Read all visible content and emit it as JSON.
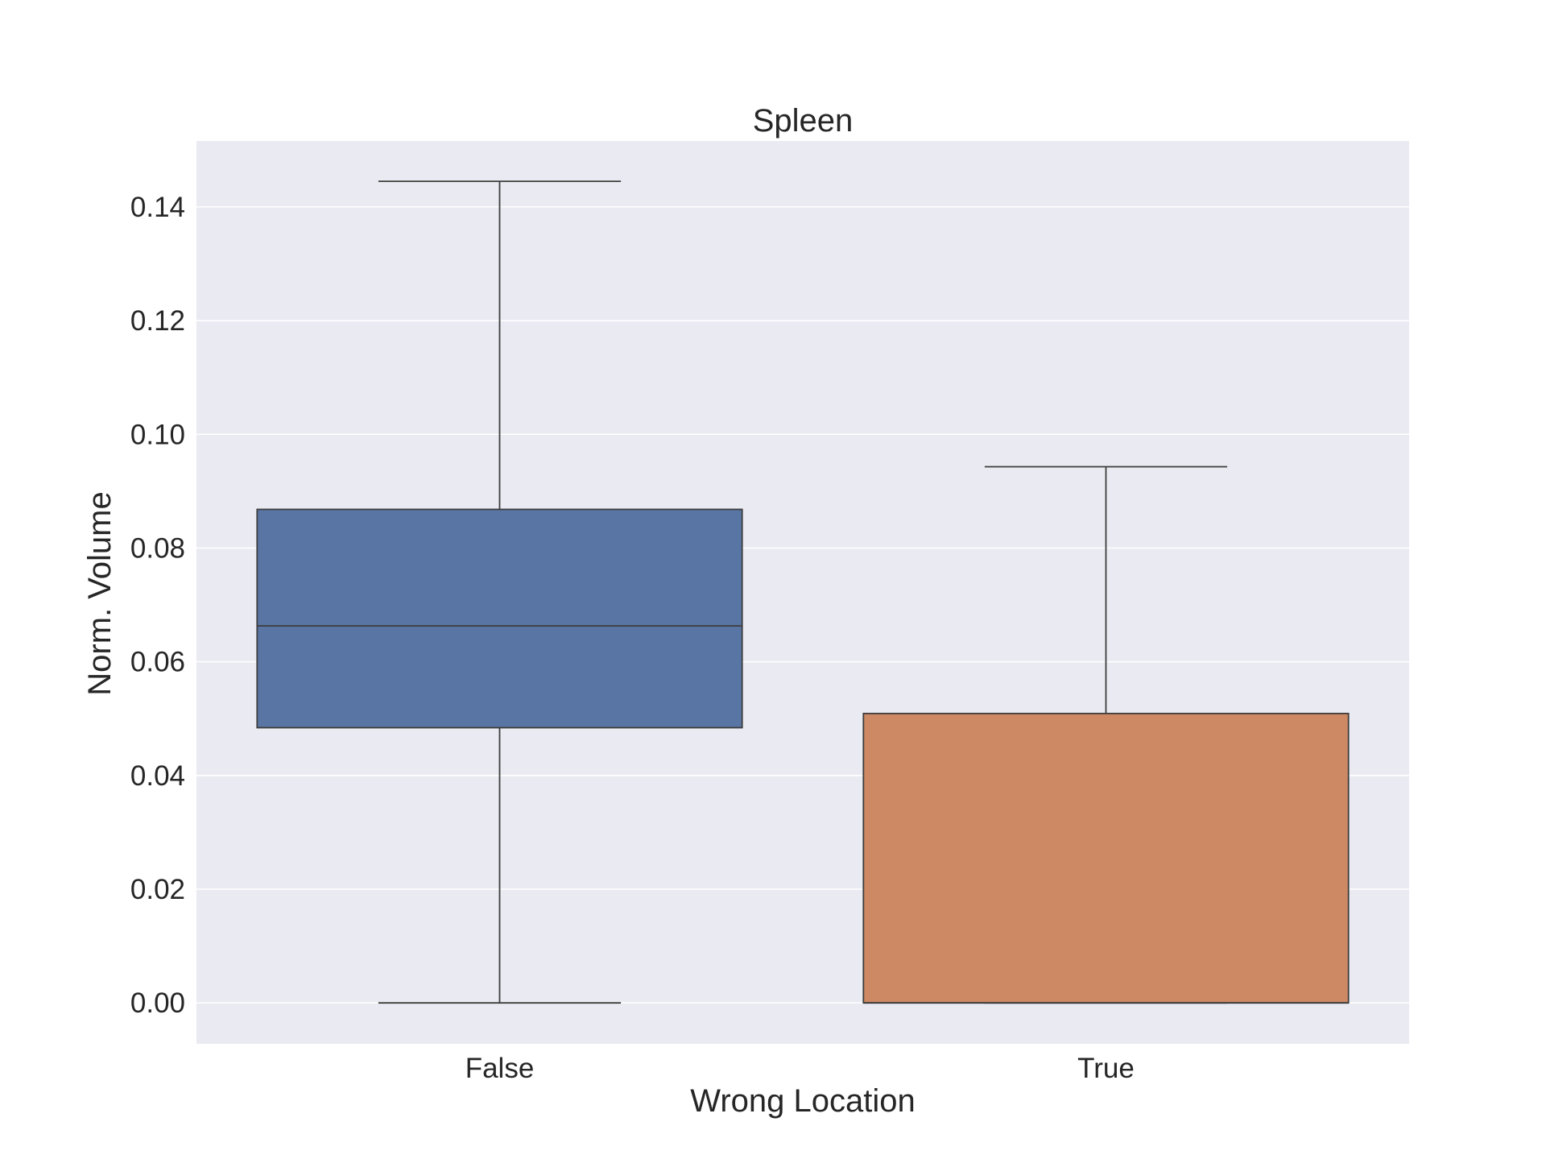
{
  "chart_data": {
    "type": "box",
    "title": "Spleen",
    "xlabel": "Wrong Location",
    "ylabel": "Norm. Volume",
    "ylim": [
      -0.0072,
      0.1516
    ],
    "yticks": [
      0.0,
      0.02,
      0.04,
      0.06,
      0.08,
      0.1,
      0.12,
      0.14
    ],
    "ytick_labels": [
      "0.00",
      "0.02",
      "0.04",
      "0.06",
      "0.08",
      "0.10",
      "0.12",
      "0.14"
    ],
    "categories": [
      "False",
      "True"
    ],
    "boxes": [
      {
        "category": "False",
        "whisker_low": 0.0,
        "q1": 0.0484,
        "median": 0.0663,
        "q3": 0.0868,
        "whisker_high": 0.1445,
        "color": "#5975a4"
      },
      {
        "category": "True",
        "whisker_low": 0.0,
        "q1": 0.0,
        "median": 0.0,
        "q3": 0.0509,
        "whisker_high": 0.0943,
        "color": "#cc8963"
      }
    ],
    "grid": true,
    "background_color": "#eaeaf2",
    "grid_color": "#ffffff",
    "line_color": "#3d3d3d"
  }
}
